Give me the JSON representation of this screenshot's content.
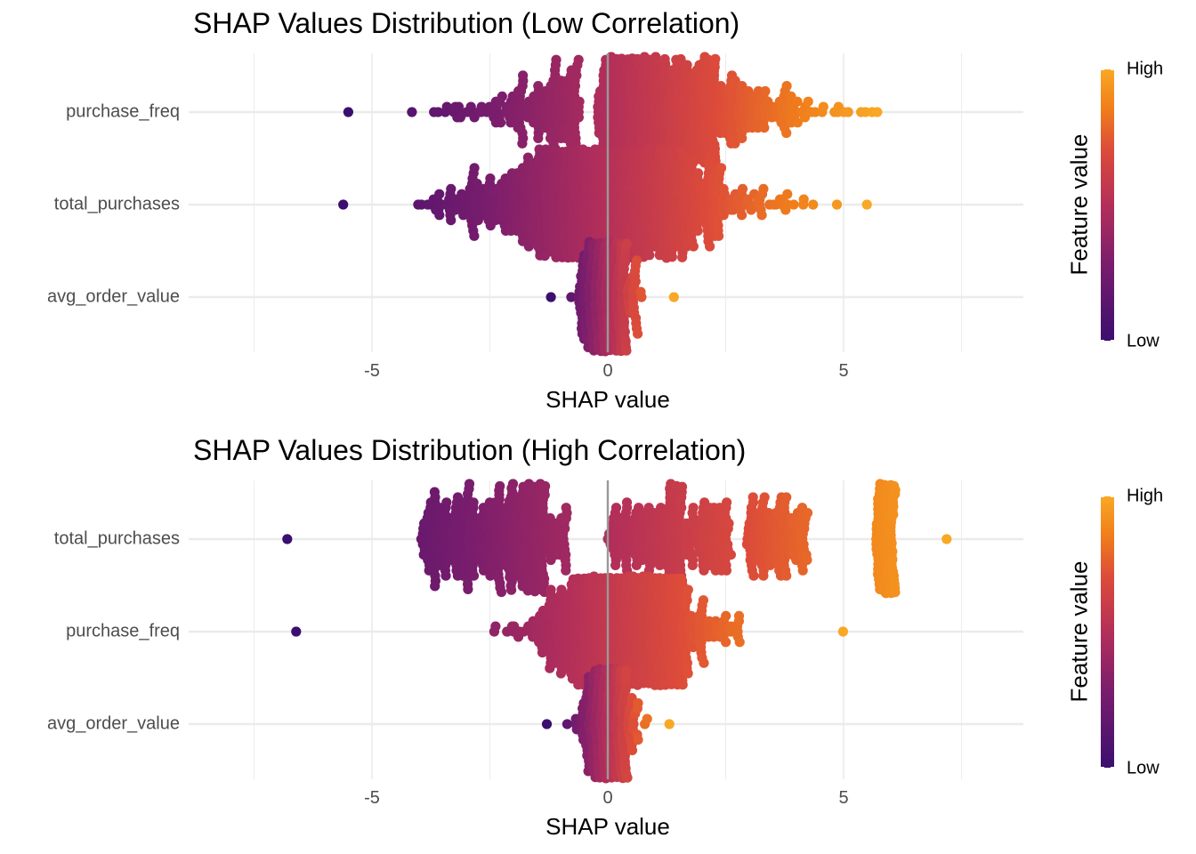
{
  "chart_data": [
    {
      "type": "scatter",
      "subtype": "beeswarm",
      "title": "SHAP Values Distribution (Low Correlation)",
      "xlabel": "SHAP value",
      "ylabel": "",
      "xlim": [
        -7.5,
        8.7
      ],
      "x_ticks": [
        -5,
        0,
        5
      ],
      "x_tick_labels": [
        "-5",
        "0",
        "5"
      ],
      "grid": true,
      "vertical_reference_line_x": 0,
      "features": [
        "purchase_freq",
        "total_purchases",
        "avg_order_value"
      ],
      "series": [
        {
          "feature": "purchase_freq",
          "min": -5.5,
          "max": 5.7,
          "gap": [
            -0.6,
            -0.2
          ],
          "peak_spread_x": -1.5,
          "density_center": 0.6,
          "spread": 2.2,
          "n": 900
        },
        {
          "feature": "total_purchases",
          "min": -5.6,
          "max": 5.5,
          "density_center": 0.0,
          "spread": 2.1,
          "n": 1000
        },
        {
          "feature": "avg_order_value",
          "min": -1.2,
          "max": 1.4,
          "density_center": 0.0,
          "spread": 0.4,
          "n": 400
        }
      ],
      "legend": {
        "title": "Feature value",
        "high_label": "High",
        "low_label": "Low",
        "position": "right"
      }
    },
    {
      "type": "scatter",
      "subtype": "beeswarm",
      "title": "SHAP Values Distribution (High Correlation)",
      "xlabel": "SHAP value",
      "ylabel": "",
      "xlim": [
        -7.5,
        8.7
      ],
      "x_ticks": [
        -5,
        0,
        5
      ],
      "x_tick_labels": [
        "-5",
        "0",
        "5"
      ],
      "grid": true,
      "vertical_reference_line_x": 0,
      "features": [
        "total_purchases",
        "purchase_freq",
        "avg_order_value"
      ],
      "series": [
        {
          "feature": "total_purchases",
          "min": -6.8,
          "max": 7.2,
          "clusters": [
            [
              -2.1,
              1.6
            ],
            [
              -3.4,
              1.1
            ],
            [
              -1.7,
              1.7
            ],
            [
              0.8,
              1.6
            ],
            [
              3.6,
              1.3
            ],
            [
              1.9,
              1.4
            ],
            [
              5.9,
              0.4
            ]
          ],
          "n": 1000
        },
        {
          "feature": "purchase_freq",
          "min": -6.6,
          "max": 5.0,
          "density_center": 0.3,
          "spread": 1.3,
          "n": 800
        },
        {
          "feature": "avg_order_value",
          "min": -1.3,
          "max": 1.3,
          "density_center": 0.0,
          "spread": 0.4,
          "n": 400
        }
      ],
      "legend": {
        "title": "Feature value",
        "high_label": "High",
        "low_label": "Low",
        "position": "right"
      }
    }
  ],
  "colors": {
    "low": "#3b0f6f",
    "mid_low": "#7a1d6d",
    "mid": "#b32f5a",
    "mid_high": "#dc4b3a",
    "high": "#f9a825",
    "grid": "#ebebeb",
    "zero_line": "#999999"
  }
}
